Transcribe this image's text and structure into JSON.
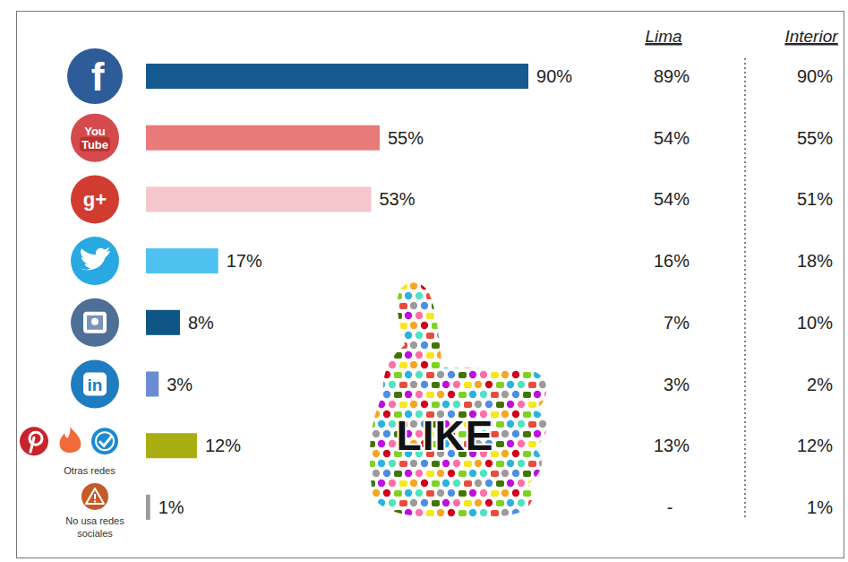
{
  "chart_data": {
    "type": "bar",
    "orientation": "horizontal",
    "categories": [
      null,
      null,
      null,
      null,
      null,
      null,
      "Otras redes",
      "No usa redes sociales"
    ],
    "icon_labels": [
      "f",
      "You Tube",
      "g+",
      null,
      null,
      "in",
      null,
      null
    ],
    "values": [
      90,
      55,
      53,
      17,
      8,
      3,
      12,
      1
    ],
    "value_labels": [
      "90%",
      "55%",
      "53%",
      "17%",
      "8%",
      "3%",
      "12%",
      "1%"
    ],
    "colors": [
      "#145a8e",
      "#e87a7a",
      "#f5c6cb",
      "#4fc1f0",
      "#0e5686",
      "#6b8bd4",
      "#a8ad12",
      "#9a9a9a"
    ],
    "xlim": [
      0,
      100
    ],
    "data_labels": true,
    "tick_labels": false,
    "grid": false,
    "columns": [
      {
        "name": "Lima",
        "values": [
          89,
          54,
          54,
          16,
          7,
          3,
          13,
          null
        ],
        "value_labels": [
          "89%",
          "54%",
          "54%",
          "16%",
          "7%",
          "3%",
          "13%",
          "-"
        ]
      },
      {
        "name": "Interior",
        "values": [
          90,
          55,
          51,
          18,
          10,
          2,
          12,
          1
        ],
        "value_labels": [
          "90%",
          "55%",
          "51%",
          "18%",
          "10%",
          "2%",
          "12%",
          "1%"
        ]
      }
    ],
    "annotations": [
      "LIKE"
    ]
  }
}
